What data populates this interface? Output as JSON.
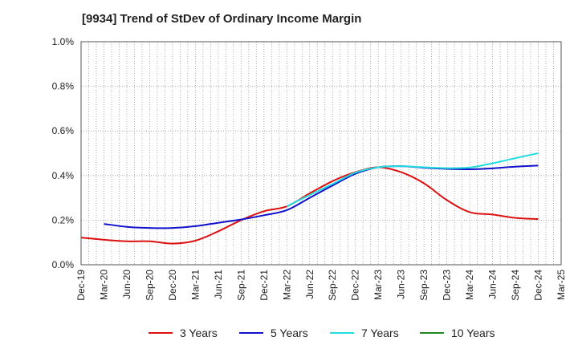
{
  "chart_data": {
    "type": "line",
    "title": "[9934]  Trend of StDev of Ordinary Income Margin",
    "xlabel": "",
    "ylabel": "",
    "x_tick_labels": [
      "Dec-19",
      "Mar-20",
      "Jun-20",
      "Sep-20",
      "Dec-20",
      "Mar-21",
      "Jun-21",
      "Sep-21",
      "Dec-21",
      "Mar-22",
      "Jun-22",
      "Sep-22",
      "Dec-22",
      "Mar-23",
      "Jun-23",
      "Sep-23",
      "Dec-23",
      "Mar-24",
      "Jun-24",
      "Sep-24",
      "Dec-24",
      "Mar-25"
    ],
    "y_tick_labels": [
      "0.0%",
      "0.2%",
      "0.4%",
      "0.6%",
      "0.8%",
      "1.0%"
    ],
    "ylim": [
      0,
      1.0
    ],
    "y_unit": "%",
    "grid": true,
    "legend_position": "bottom",
    "series": [
      {
        "name": "3 Years",
        "color": "#dd1111",
        "points": [
          [
            "Dec-19",
            0.122
          ],
          [
            "Mar-20",
            0.112
          ],
          [
            "Jun-20",
            0.105
          ],
          [
            "Sep-20",
            0.105
          ],
          [
            "Dec-20",
            0.095
          ],
          [
            "Mar-21",
            0.108
          ],
          [
            "Jun-21",
            0.15
          ],
          [
            "Sep-21",
            0.2
          ],
          [
            "Dec-21",
            0.24
          ],
          [
            "Mar-22",
            0.262
          ],
          [
            "Jun-22",
            0.32
          ],
          [
            "Sep-22",
            0.375
          ],
          [
            "Dec-22",
            0.415
          ],
          [
            "Mar-23",
            0.437
          ],
          [
            "Jun-23",
            0.415
          ],
          [
            "Sep-23",
            0.365
          ],
          [
            "Dec-23",
            0.29
          ],
          [
            "Mar-24",
            0.236
          ],
          [
            "Jun-24",
            0.225
          ],
          [
            "Sep-24",
            0.21
          ],
          [
            "Dec-24",
            0.205
          ]
        ]
      },
      {
        "name": "5 Years",
        "color": "#1111cc",
        "points": [
          [
            "Mar-20",
            0.183
          ],
          [
            "Jun-20",
            0.17
          ],
          [
            "Sep-20",
            0.165
          ],
          [
            "Dec-20",
            0.165
          ],
          [
            "Mar-21",
            0.173
          ],
          [
            "Jun-21",
            0.188
          ],
          [
            "Sep-21",
            0.203
          ],
          [
            "Dec-21",
            0.222
          ],
          [
            "Mar-22",
            0.245
          ],
          [
            "Jun-22",
            0.3
          ],
          [
            "Sep-22",
            0.355
          ],
          [
            "Dec-22",
            0.408
          ],
          [
            "Mar-23",
            0.437
          ],
          [
            "Jun-23",
            0.442
          ],
          [
            "Sep-23",
            0.435
          ],
          [
            "Dec-23",
            0.43
          ],
          [
            "Mar-24",
            0.428
          ],
          [
            "Jun-24",
            0.432
          ],
          [
            "Sep-24",
            0.44
          ],
          [
            "Dec-24",
            0.445
          ]
        ]
      },
      {
        "name": "7 Years",
        "color": "#22dddd",
        "points": [
          [
            "Mar-22",
            0.262
          ],
          [
            "Jun-22",
            0.313
          ],
          [
            "Sep-22",
            0.362
          ],
          [
            "Dec-22",
            0.413
          ],
          [
            "Mar-23",
            0.437
          ],
          [
            "Jun-23",
            0.442
          ],
          [
            "Sep-23",
            0.437
          ],
          [
            "Dec-23",
            0.433
          ],
          [
            "Mar-24",
            0.436
          ],
          [
            "Jun-24",
            0.455
          ],
          [
            "Sep-24",
            0.478
          ],
          [
            "Dec-24",
            0.5
          ]
        ]
      },
      {
        "name": "10 Years",
        "color": "#228822",
        "points": []
      }
    ]
  }
}
